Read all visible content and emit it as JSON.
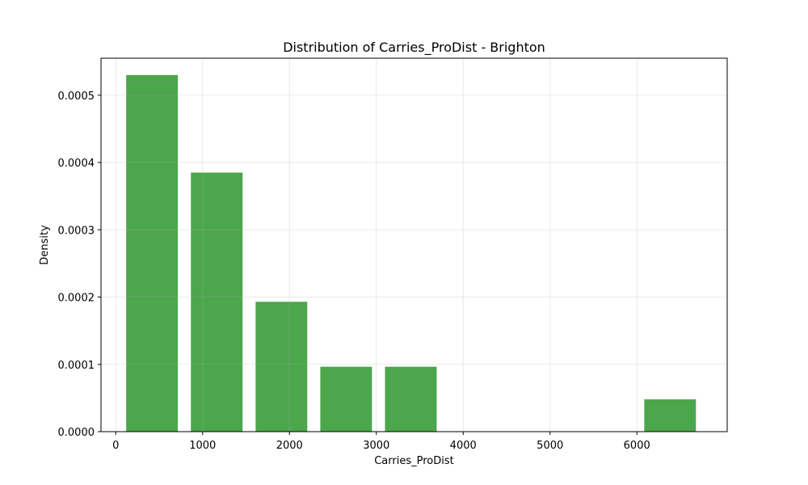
{
  "chart_data": {
    "type": "bar",
    "title": "Distribution of Carries_ProDist - Brighton",
    "xlabel": "Carries_ProDist",
    "ylabel": "Density",
    "xlim": [
      -170,
      7040
    ],
    "ylim": [
      0,
      0.000555
    ],
    "x_ticks": [
      0,
      1000,
      2000,
      3000,
      4000,
      5000,
      6000
    ],
    "x_tick_labels": [
      "0",
      "1000",
      "2000",
      "3000",
      "4000",
      "5000",
      "6000"
    ],
    "y_ticks": [
      0,
      0.0001,
      0.0002,
      0.0003,
      0.0004,
      0.0005
    ],
    "y_tick_labels": [
      "0.0000",
      "0.0001",
      "0.0002",
      "0.0003",
      "0.0004",
      "0.0005"
    ],
    "grid": true,
    "bar_color": "#4ca64c",
    "bins": [
      {
        "x0": 120,
        "x1": 715,
        "value": 0.00053
      },
      {
        "x0": 865,
        "x1": 1460,
        "value": 0.000385
      },
      {
        "x0": 1610,
        "x1": 2205,
        "value": 0.000193
      },
      {
        "x0": 2355,
        "x1": 2950,
        "value": 9.65e-05
      },
      {
        "x0": 3100,
        "x1": 3695,
        "value": 9.65e-05
      },
      {
        "x0": 6085,
        "x1": 6680,
        "value": 4.8e-05
      }
    ]
  }
}
